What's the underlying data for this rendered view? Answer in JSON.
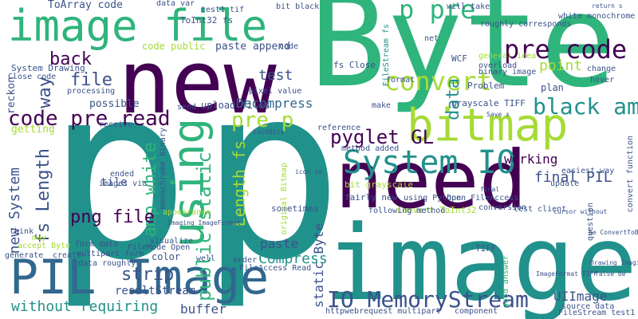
{
  "palette": {
    "dark_purple": "#440154",
    "indigo": "#3b528b",
    "slate_blue": "#31688e",
    "teal": "#21918c",
    "green": "#2fb47c",
    "lime": "#a5db36",
    "yellow": "#fde725"
  },
  "words": [
    "Byte",
    "p",
    "p",
    "image",
    "new",
    "image file",
    "need",
    "PIL Image",
    "bitmap",
    "using",
    "System IO",
    "p pre",
    "pre code",
    "convert",
    "black amp",
    "IO MemoryStream",
    "pre p",
    "code pre read",
    "pyglet GL",
    "file",
    "back",
    "public static",
    "amp white",
    "Length fs",
    "fs Length",
    "new System",
    "strip",
    "png file",
    "Compress",
    "way",
    "paste",
    "Decompress",
    "test",
    "resultStream",
    "without requiring",
    "buffer",
    "UIImage",
    "final PIL",
    "static Byte",
    "data",
    "point",
    "working",
    "paste append",
    "tile",
    "code public",
    "ToArray code",
    "ToInt32 fs",
    "System Drawing",
    "Close code",
    "reckon",
    "getting",
    "possible",
    "upload files",
    "pixel value",
    "fs Close",
    "FileStream fs",
    "Problem",
    "plan",
    "grayscale TIFF",
    "bit grayscale",
    "Convert ToInt32",
    "conversion",
    "test client",
    "sometimes",
    "following method",
    "fairly new",
    "method added",
    "FileAccess Read",
    "order",
    "well",
    "color",
    "create",
    "data roughly",
    "multipart form",
    "form data",
    "visualize",
    "FileMode Open",
    "images via",
    "ended",
    "monochrome binary",
    "receive",
    "send",
    "processing",
    "Open FileAccess",
    "using Python",
    "will take",
    "roughly corresponds",
    "white monochrome",
    "general idea",
    "binary image",
    "overload",
    "change",
    "hover",
    "update",
    "question",
    "easiest way",
    "good answer",
    "TIFF",
    "source data",
    "FileStream test1",
    "component",
    "httpwebrequest multipart",
    "reference",
    "net",
    "WCF",
    "format",
    "make",
    "think",
    "may",
    "generate",
    "accept Byte",
    "appearance",
    "original Bitmap",
    "test1 tif",
    "bit black",
    "data var",
    "code",
    "convert function",
    "ImageFormat TIFF",
    "Drawing Imaging",
    "false be",
    "return s",
    "Save s",
    "Imaging ImageFormat",
    "cursor without",
    "be ConvertToBitonal",
    "final",
    "LockBits",
    "icon ie"
  ]
}
